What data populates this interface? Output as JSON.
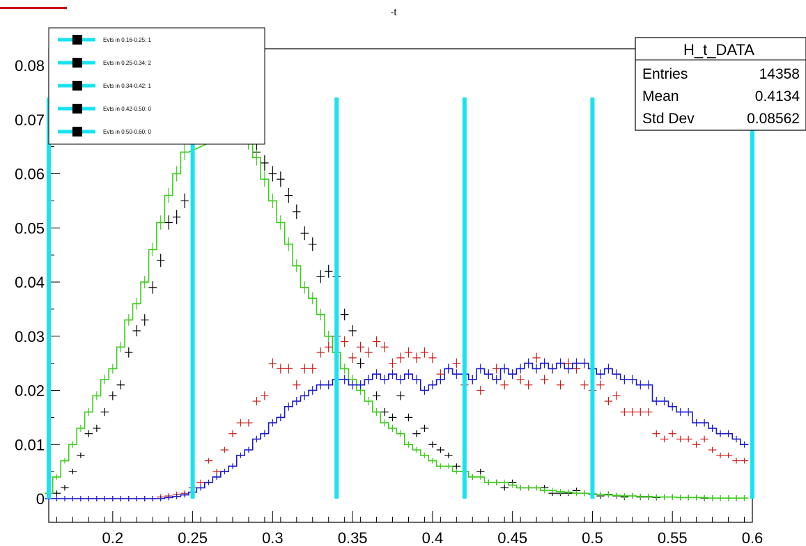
{
  "corner_marker_color": "#cc0000",
  "chart_data": {
    "type": "line",
    "title": "-t",
    "xlim": [
      0.16,
      0.6
    ],
    "ylim": [
      0,
      0.085
    ],
    "x_ticks": [
      0.2,
      0.25,
      0.3,
      0.35,
      0.4,
      0.45,
      0.5,
      0.55,
      0.6
    ],
    "x_tick_labels": [
      "0.2",
      "0.25",
      "0.3",
      "0.35",
      "0.4",
      "0.45",
      "0.5",
      "0.55",
      "0.6"
    ],
    "y_ticks": [
      0,
      0.01,
      0.02,
      0.03,
      0.04,
      0.05,
      0.06,
      0.07,
      0.08
    ],
    "y_tick_labels": [
      "0",
      "0.01",
      "0.02",
      "0.03",
      "0.04",
      "0.05",
      "0.06",
      "0.07",
      "0.08"
    ],
    "bin_boundaries": [
      0.16,
      0.25,
      0.34,
      0.42,
      0.5,
      0.6
    ],
    "bin_line_color": "#19e3f0",
    "legend": [
      {
        "label": "Evts in 0.16-0.25: 1"
      },
      {
        "label": "Evts in 0.25-0.34: 2"
      },
      {
        "label": "Evts in 0.34-0.42: 1"
      },
      {
        "label": "Evts in 0.42-0.50: 0"
      },
      {
        "label": "Evts in 0.50-0.60: 0"
      }
    ],
    "stats_box": {
      "title": "H_t_DATA",
      "rows": [
        {
          "label": "Entries",
          "value": "14358"
        },
        {
          "label": "Mean",
          "value": "0.4134"
        },
        {
          "label": "Std Dev",
          "value": "0.08562"
        }
      ]
    },
    "series": [
      {
        "color": "#000000",
        "style": "points",
        "x": [
          0.165,
          0.17,
          0.175,
          0.18,
          0.185,
          0.19,
          0.195,
          0.2,
          0.205,
          0.21,
          0.215,
          0.22,
          0.225,
          0.23,
          0.235,
          0.24,
          0.245,
          0.28,
          0.285,
          0.29,
          0.295,
          0.3,
          0.305,
          0.31,
          0.315,
          0.32,
          0.325,
          0.33,
          0.335,
          0.34,
          0.345,
          0.35,
          0.355,
          0.36,
          0.365,
          0.37,
          0.375,
          0.38,
          0.385,
          0.39,
          0.395,
          0.4,
          0.405,
          0.41,
          0.415,
          0.42,
          0.425,
          0.43,
          0.435,
          0.44,
          0.445,
          0.45,
          0.455,
          0.46,
          0.465,
          0.47,
          0.475,
          0.48,
          0.485,
          0.49,
          0.495,
          0.5,
          0.505,
          0.51,
          0.515,
          0.52,
          0.525,
          0.53,
          0.535,
          0.54,
          0.545,
          0.55,
          0.555,
          0.56,
          0.565,
          0.57,
          0.575,
          0.58,
          0.585,
          0.59,
          0.595
        ],
        "y": [
          0.001,
          0.002,
          0.005,
          0.008,
          0.012,
          0.013,
          0.016,
          0.019,
          0.021,
          0.027,
          0.031,
          0.033,
          0.039,
          0.044,
          0.051,
          0.052,
          0.055,
          0.068,
          0.066,
          0.064,
          0.062,
          0.06,
          0.059,
          0.056,
          0.053,
          0.049,
          0.047,
          0.041,
          0.042,
          0.041,
          0.034,
          0.031,
          0.025,
          0.022,
          0.019,
          0.016,
          0.015,
          0.019,
          0.015,
          0.012,
          0.013,
          0.01,
          0.009,
          0.008,
          0.006,
          0.005,
          0.004,
          0.005,
          0.003,
          0.003,
          0.002,
          0.003,
          0.002,
          0.002,
          0.002,
          0.002,
          0.001,
          0.001,
          0.001,
          0.0015,
          0.001,
          0.0008,
          0.0005,
          0.0008,
          0.0005,
          0.0003,
          0.0005,
          0.0003,
          0.0003,
          0.0002,
          0.0003,
          0.0003,
          0.0002,
          0.0002,
          0.0002,
          0.0001,
          0.0001,
          0.0001,
          0.0001,
          0.0001,
          0.0001
        ]
      },
      {
        "color": "#3ccc1a",
        "style": "step",
        "x": [
          0.16,
          0.165,
          0.17,
          0.175,
          0.18,
          0.185,
          0.19,
          0.195,
          0.2,
          0.205,
          0.21,
          0.215,
          0.22,
          0.225,
          0.23,
          0.235,
          0.24,
          0.245,
          0.28,
          0.285,
          0.29,
          0.295,
          0.3,
          0.305,
          0.31,
          0.315,
          0.32,
          0.325,
          0.33,
          0.335,
          0.34,
          0.345,
          0.35,
          0.355,
          0.36,
          0.365,
          0.37,
          0.375,
          0.38,
          0.385,
          0.39,
          0.395,
          0.4,
          0.405,
          0.41,
          0.415,
          0.42,
          0.425,
          0.43,
          0.435,
          0.44,
          0.445,
          0.45,
          0.455,
          0.46,
          0.465,
          0.47,
          0.475,
          0.48,
          0.485,
          0.49,
          0.495,
          0.5,
          0.505,
          0.51,
          0.515,
          0.52,
          0.525,
          0.53,
          0.535,
          0.54,
          0.545,
          0.55,
          0.555,
          0.56,
          0.565,
          0.57,
          0.575,
          0.58,
          0.585,
          0.59,
          0.595
        ],
        "y": [
          0.001,
          0.004,
          0.007,
          0.01,
          0.013,
          0.016,
          0.019,
          0.022,
          0.024,
          0.028,
          0.033,
          0.036,
          0.04,
          0.046,
          0.051,
          0.056,
          0.06,
          0.064,
          0.068,
          0.066,
          0.063,
          0.059,
          0.055,
          0.051,
          0.047,
          0.043,
          0.039,
          0.037,
          0.034,
          0.03,
          0.027,
          0.024,
          0.022,
          0.02,
          0.018,
          0.016,
          0.014,
          0.013,
          0.012,
          0.01,
          0.009,
          0.008,
          0.007,
          0.006,
          0.006,
          0.005,
          0.005,
          0.004,
          0.004,
          0.003,
          0.003,
          0.003,
          0.0025,
          0.002,
          0.002,
          0.002,
          0.0015,
          0.0015,
          0.0013,
          0.0012,
          0.001,
          0.001,
          0.0009,
          0.0008,
          0.0007,
          0.0006,
          0.0005,
          0.0005,
          0.0004,
          0.0004,
          0.0003,
          0.0003,
          0.0003,
          0.0002,
          0.0002,
          0.0002,
          0.0002,
          0.0001,
          0.0001,
          0.0001,
          0.0001,
          0.0001
        ]
      },
      {
        "color": "#cc1a1a",
        "style": "points",
        "x": [
          0.18,
          0.185,
          0.19,
          0.195,
          0.2,
          0.205,
          0.21,
          0.215,
          0.22,
          0.225,
          0.23,
          0.235,
          0.24,
          0.245,
          0.25,
          0.255,
          0.26,
          0.265,
          0.27,
          0.275,
          0.28,
          0.285,
          0.29,
          0.295,
          0.3,
          0.305,
          0.31,
          0.315,
          0.32,
          0.325,
          0.33,
          0.335,
          0.34,
          0.345,
          0.35,
          0.355,
          0.36,
          0.365,
          0.37,
          0.375,
          0.38,
          0.385,
          0.39,
          0.395,
          0.4,
          0.405,
          0.41,
          0.415,
          0.42,
          0.425,
          0.43,
          0.435,
          0.44,
          0.445,
          0.45,
          0.455,
          0.46,
          0.465,
          0.47,
          0.475,
          0.48,
          0.485,
          0.49,
          0.495,
          0.5,
          0.505,
          0.51,
          0.515,
          0.52,
          0.525,
          0.53,
          0.535,
          0.54,
          0.545,
          0.55,
          0.555,
          0.56,
          0.565,
          0.57,
          0.575,
          0.58,
          0.585,
          0.59,
          0.595
        ],
        "y": [
          0,
          0,
          0,
          0,
          0,
          0,
          0,
          0,
          0,
          0,
          0.0003,
          0.0005,
          0.0008,
          0.001,
          0.002,
          0.003,
          0.007,
          0.005,
          0.009,
          0.012,
          0.014,
          0.014,
          0.018,
          0.019,
          0.025,
          0.024,
          0.024,
          0.021,
          0.024,
          0.024,
          0.027,
          0.028,
          0.03,
          0.029,
          0.026,
          0.028,
          0.027,
          0.029,
          0.028,
          0.025,
          0.026,
          0.027,
          0.026,
          0.027,
          0.026,
          0.023,
          0.024,
          0.025,
          0.021,
          0.022,
          0.02,
          0.023,
          0.024,
          0.021,
          0.023,
          0.022,
          0.021,
          0.026,
          0.022,
          0.024,
          0.021,
          0.025,
          0.024,
          0.021,
          0.02,
          0.021,
          0.018,
          0.019,
          0.016,
          0.016,
          0.016,
          0.016,
          0.012,
          0.011,
          0.012,
          0.011,
          0.011,
          0.01,
          0.011,
          0.009,
          0.008,
          0.008,
          0.007,
          0.007
        ]
      },
      {
        "color": "#1a1acc",
        "style": "step",
        "x": [
          0.16,
          0.165,
          0.17,
          0.175,
          0.18,
          0.185,
          0.19,
          0.195,
          0.2,
          0.205,
          0.21,
          0.215,
          0.22,
          0.225,
          0.23,
          0.235,
          0.24,
          0.245,
          0.25,
          0.255,
          0.26,
          0.265,
          0.27,
          0.275,
          0.28,
          0.285,
          0.29,
          0.295,
          0.3,
          0.305,
          0.31,
          0.315,
          0.32,
          0.325,
          0.33,
          0.335,
          0.34,
          0.345,
          0.35,
          0.355,
          0.36,
          0.365,
          0.37,
          0.375,
          0.38,
          0.385,
          0.39,
          0.395,
          0.4,
          0.405,
          0.41,
          0.415,
          0.42,
          0.425,
          0.43,
          0.435,
          0.44,
          0.445,
          0.45,
          0.455,
          0.46,
          0.465,
          0.47,
          0.475,
          0.48,
          0.485,
          0.49,
          0.495,
          0.5,
          0.505,
          0.51,
          0.515,
          0.52,
          0.525,
          0.53,
          0.535,
          0.54,
          0.545,
          0.55,
          0.555,
          0.56,
          0.565,
          0.57,
          0.575,
          0.58,
          0.585,
          0.59,
          0.595
        ],
        "y": [
          0,
          0,
          0,
          0,
          0,
          0,
          0,
          0,
          0,
          0,
          0,
          0,
          0,
          0,
          0,
          0.0002,
          0.0004,
          0.0007,
          0.0012,
          0.002,
          0.003,
          0.004,
          0.005,
          0.006,
          0.008,
          0.009,
          0.011,
          0.012,
          0.014,
          0.015,
          0.017,
          0.018,
          0.019,
          0.02,
          0.021,
          0.021,
          0.022,
          0.022,
          0.021,
          0.021,
          0.022,
          0.023,
          0.022,
          0.023,
          0.022,
          0.023,
          0.022,
          0.02,
          0.021,
          0.022,
          0.024,
          0.023,
          0.023,
          0.022,
          0.024,
          0.023,
          0.022,
          0.024,
          0.023,
          0.024,
          0.025,
          0.024,
          0.025,
          0.024,
          0.025,
          0.024,
          0.025,
          0.025,
          0.024,
          0.023,
          0.024,
          0.023,
          0.022,
          0.022,
          0.021,
          0.021,
          0.018,
          0.018,
          0.017,
          0.016,
          0.016,
          0.014,
          0.014,
          0.013,
          0.012,
          0.012,
          0.011,
          0.01
        ]
      }
    ]
  }
}
